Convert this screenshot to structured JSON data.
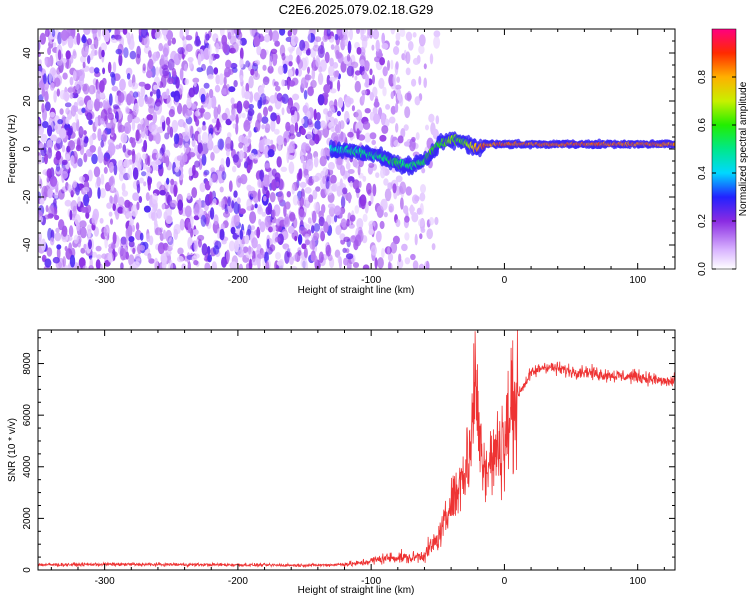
{
  "title": "C2E6.2025.079.02.18.G29",
  "colors": {
    "snr_line": "#ee3333",
    "heat_low": "#8a2be2",
    "heat_mid": "#00e0c0",
    "heat_high": "#ff2020"
  },
  "chart_data": [
    {
      "type": "heatmap",
      "title": "",
      "xlabel": "Height of straight line (km)",
      "ylabel": "Frequency (Hz)",
      "xlim": [
        -350,
        128
      ],
      "ylim": [
        -50,
        50
      ],
      "xticks": [
        -300,
        -200,
        -100,
        0,
        100
      ],
      "yticks": [
        -40,
        -20,
        0,
        20,
        40
      ],
      "colorbar": {
        "label": "Normalized spectral amplitude",
        "range": [
          0,
          1
        ],
        "ticks": [
          "0.0",
          "0.2",
          "0.4",
          "0.6",
          "0.8"
        ],
        "tick_values": [
          0,
          0.2,
          0.4,
          0.6,
          0.8
        ]
      },
      "signal_track": {
        "x": [
          -130,
          -110,
          -95,
          -80,
          -70,
          -60,
          -50,
          -40,
          -30,
          -20,
          -15,
          0,
          50,
          128
        ],
        "freq_hz": [
          0,
          -1,
          -3,
          -6,
          -7,
          -5,
          2,
          4,
          3,
          0,
          2,
          2,
          2,
          2
        ],
        "amplitude": [
          0.45,
          0.5,
          0.5,
          0.55,
          0.5,
          0.55,
          0.6,
          0.65,
          0.6,
          0.8,
          0.85,
          0.85,
          0.85,
          0.85
        ]
      },
      "noise_region_xmax": -75
    },
    {
      "type": "line",
      "title": "",
      "xlabel": "Height of straight line (km)",
      "ylabel": "SNR (10 * v/v)",
      "xlim": [
        -350,
        128
      ],
      "ylim": [
        0,
        9300
      ],
      "xticks": [
        -300,
        -200,
        -100,
        0,
        100
      ],
      "yticks": [
        0,
        2000,
        4000,
        6000,
        8000
      ],
      "series": [
        {
          "name": "SNR",
          "x": [
            -350,
            -300,
            -250,
            -200,
            -150,
            -130,
            -110,
            -100,
            -90,
            -80,
            -70,
            -60,
            -50,
            -45,
            -40,
            -35,
            -30,
            -25,
            -22,
            -20,
            -15,
            -10,
            -5,
            0,
            5,
            10,
            20,
            30,
            40,
            50,
            60,
            70,
            80,
            90,
            100,
            110,
            120,
            128
          ],
          "y": [
            200,
            220,
            210,
            200,
            180,
            200,
            250,
            350,
            450,
            500,
            450,
            600,
            1200,
            1800,
            2600,
            3200,
            3800,
            5000,
            7000,
            6000,
            3800,
            4200,
            4500,
            5000,
            6000,
            6800,
            7600,
            7900,
            7800,
            7700,
            7700,
            7600,
            7550,
            7500,
            7500,
            7400,
            7300,
            7300
          ]
        }
      ]
    }
  ]
}
